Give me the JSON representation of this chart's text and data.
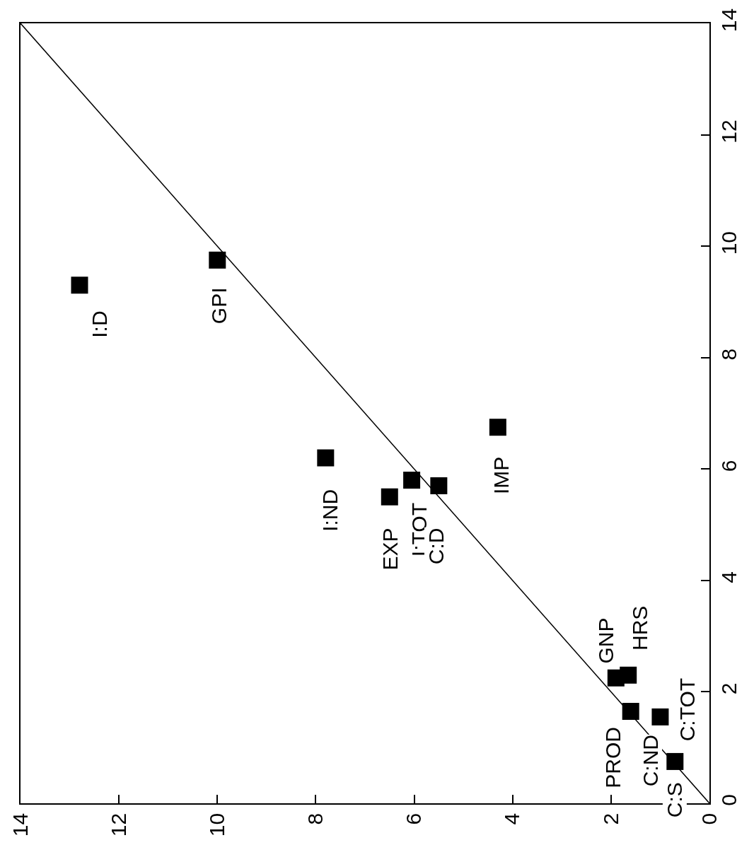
{
  "chart_data": {
    "type": "scatter",
    "xlim": [
      14,
      0
    ],
    "xticks": [
      0,
      2,
      4,
      6,
      8,
      10,
      12,
      14
    ],
    "ylim": [
      0,
      14
    ],
    "yticks": [
      0,
      2,
      4,
      6,
      8,
      10,
      12,
      14
    ],
    "series": [
      {
        "type": "line",
        "color": "#000000",
        "marker": "none",
        "line_style": "solid",
        "x": [
          0,
          14
        ],
        "values": [
          0,
          14
        ]
      },
      {
        "color": "#000000",
        "marker": "square",
        "x": [
          12.8,
          10.0,
          7.8,
          6.5,
          6.05,
          5.5,
          4.3,
          1.9,
          1.65,
          1.6,
          1.0,
          0.7
        ],
        "values": [
          9.3,
          9.75,
          6.2,
          5.5,
          5.8,
          5.7,
          6.75,
          2.25,
          2.3,
          1.65,
          1.55,
          0.75
        ]
      }
    ],
    "annotations": [
      {
        "text": "I:D",
        "x": 12.8,
        "y": 9.3
      },
      {
        "text": "GPI",
        "x": 10.0,
        "y": 9.75
      },
      {
        "text": "I:ND",
        "x": 7.8,
        "y": 6.2
      },
      {
        "text": "EXP",
        "x": 6.5,
        "y": 5.5
      },
      {
        "text": "I:TOT",
        "x": 6.05,
        "y": 5.8
      },
      {
        "text": "C:D",
        "x": 5.5,
        "y": 5.7
      },
      {
        "text": "IMP",
        "x": 4.3,
        "y": 6.75
      },
      {
        "text": "GNP",
        "x": 1.9,
        "y": 2.25
      },
      {
        "text": "HRS",
        "x": 1.65,
        "y": 2.3
      },
      {
        "text": "PROD",
        "x": 1.6,
        "y": 1.65
      },
      {
        "text": "C:ND",
        "x": 1.0,
        "y": 1.55
      },
      {
        "text": "C:TOT",
        "x": 1.0,
        "y": 1.55
      },
      {
        "text": "C:S",
        "x": 0.7,
        "y": 0.75
      }
    ]
  }
}
